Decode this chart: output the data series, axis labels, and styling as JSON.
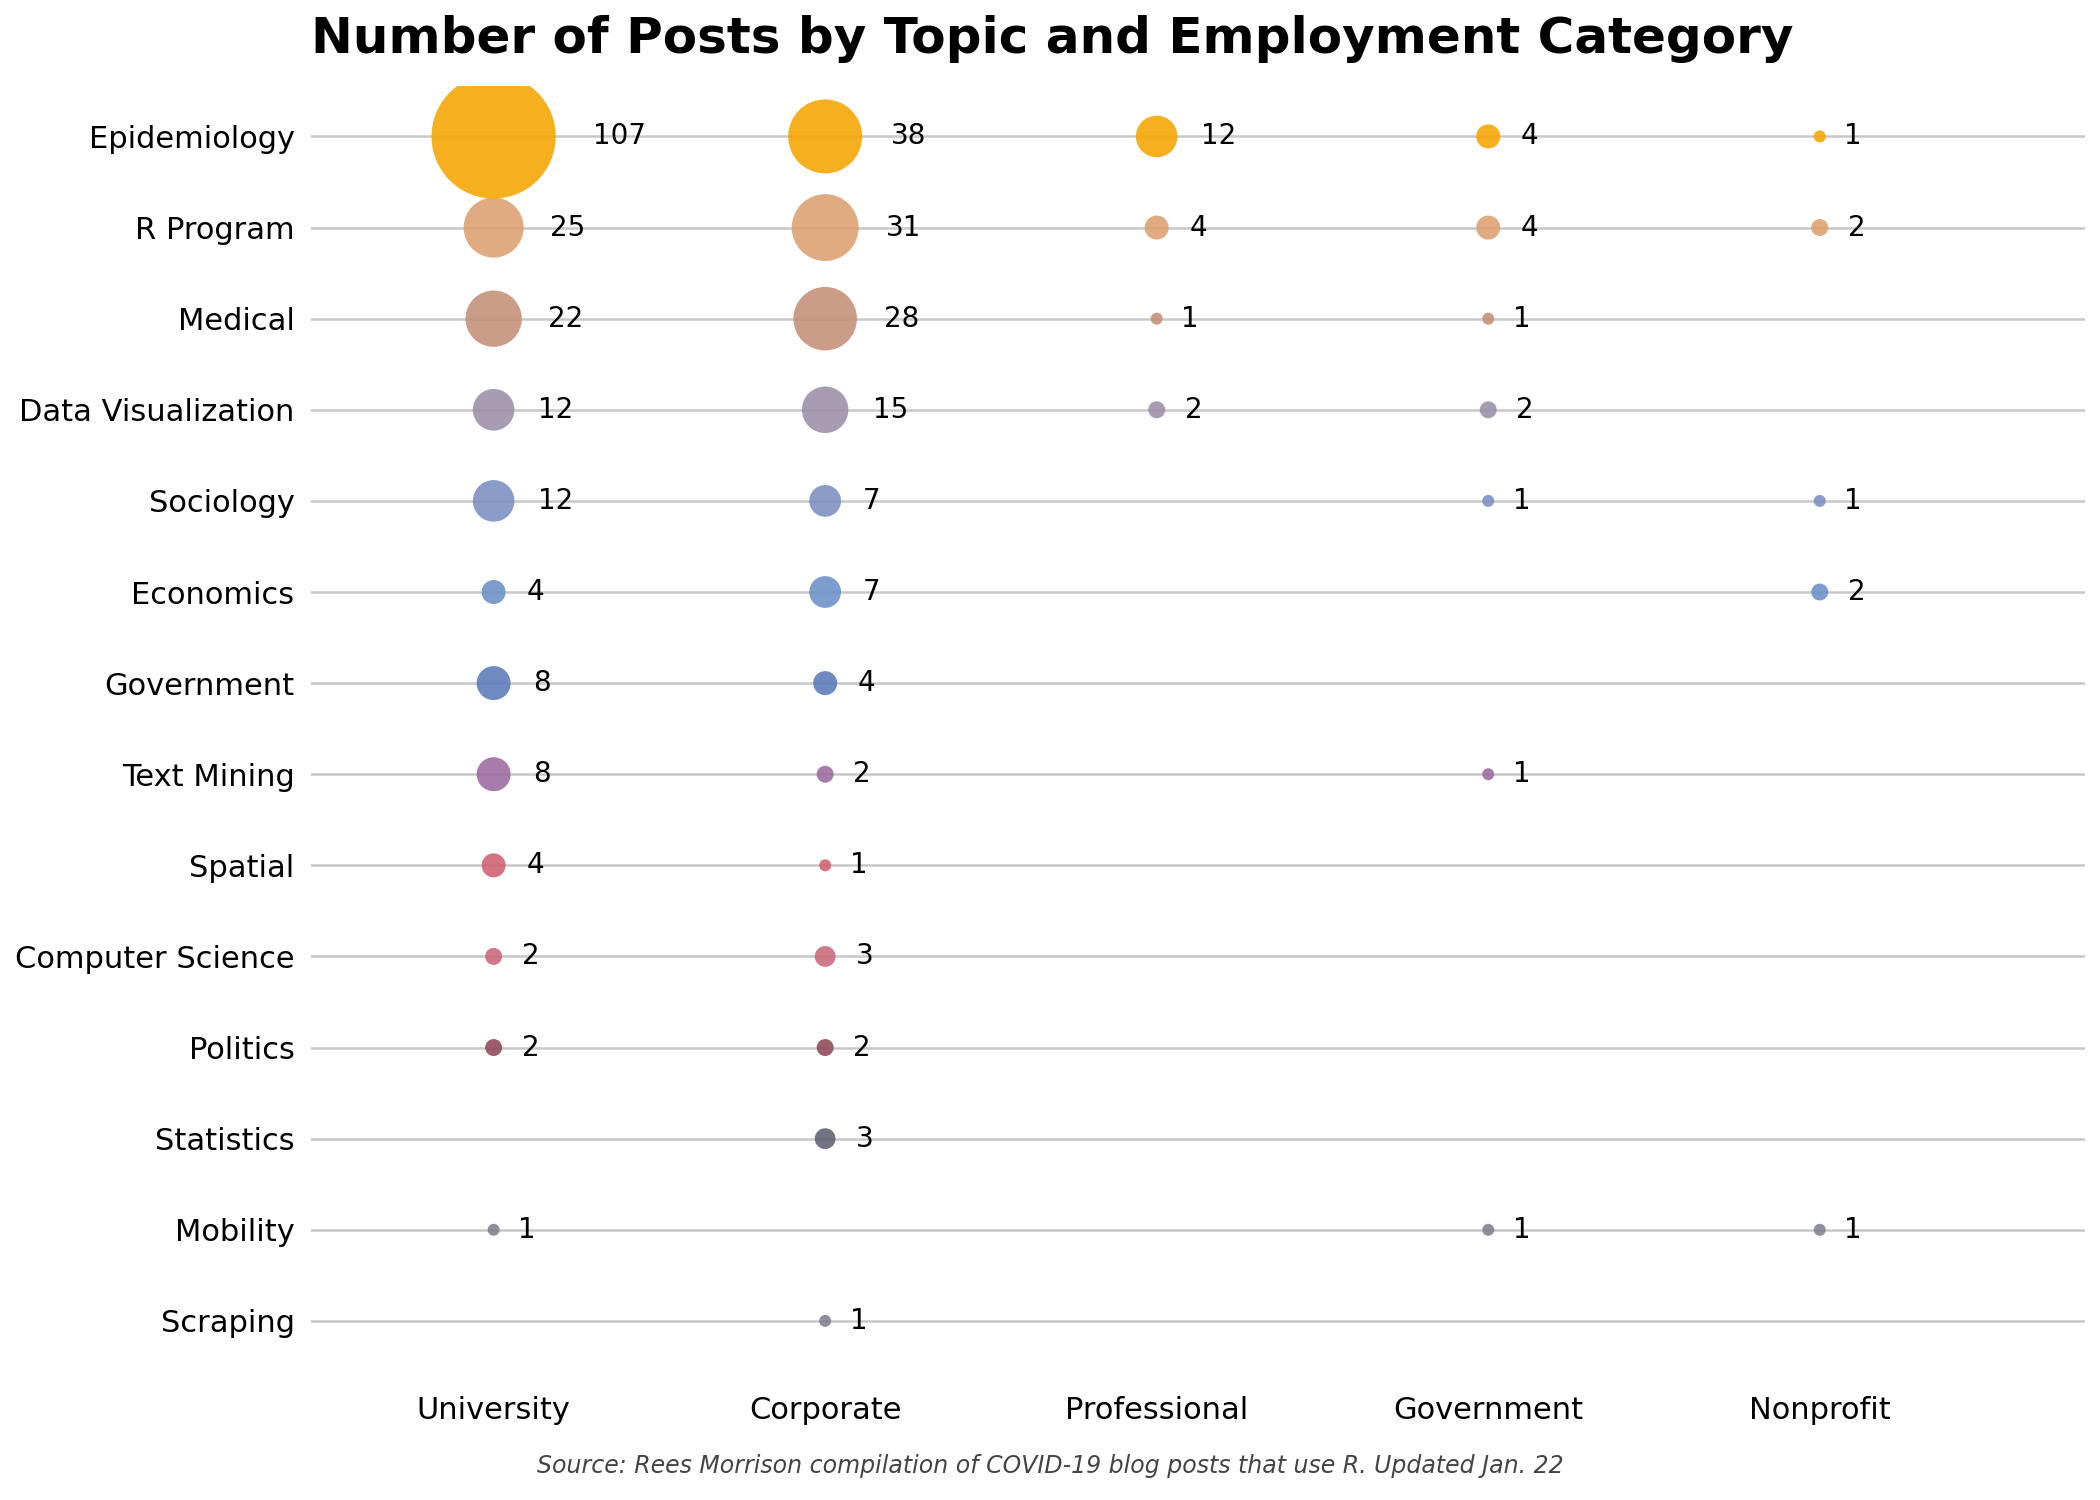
{
  "title": "Number of Posts by Topic and Employment Category",
  "source": "Source: Rees Morrison compilation of COVID-19 blog posts that use R. Updated Jan. 22",
  "topics": [
    "Epidemiology",
    "R Program",
    "Medical",
    "Data Visualization",
    "Sociology",
    "Economics",
    "Government",
    "Text Mining",
    "Spatial",
    "Computer Science",
    "Politics",
    "Statistics",
    "Mobility",
    "Scraping"
  ],
  "categories": [
    "University",
    "Corporate",
    "Professional",
    "Government",
    "Nonprofit"
  ],
  "data": {
    "Epidemiology": [
      107,
      38,
      12,
      4,
      1
    ],
    "R Program": [
      25,
      31,
      4,
      4,
      2
    ],
    "Medical": [
      22,
      28,
      1,
      1,
      0
    ],
    "Data Visualization": [
      12,
      15,
      2,
      2,
      0
    ],
    "Sociology": [
      12,
      7,
      0,
      1,
      1
    ],
    "Economics": [
      4,
      7,
      0,
      0,
      2
    ],
    "Government": [
      8,
      4,
      0,
      0,
      0
    ],
    "Text Mining": [
      8,
      2,
      0,
      1,
      0
    ],
    "Spatial": [
      4,
      1,
      0,
      0,
      0
    ],
    "Computer Science": [
      2,
      3,
      0,
      0,
      0
    ],
    "Politics": [
      2,
      2,
      0,
      0,
      0
    ],
    "Statistics": [
      0,
      3,
      0,
      0,
      0
    ],
    "Mobility": [
      1,
      0,
      0,
      1,
      1
    ],
    "Scraping": [
      0,
      1,
      0,
      0,
      0
    ]
  },
  "colors": {
    "Epidemiology": "#F5A500",
    "R Program": "#DDA070",
    "Medical": "#C49078",
    "Data Visualization": "#9B8EA8",
    "Sociology": "#7A8FC0",
    "Economics": "#6B90C8",
    "Government": "#5A7AB8",
    "Text Mining": "#9B6AA0",
    "Spatial": "#D06070",
    "Computer Science": "#C86878",
    "Politics": "#904858",
    "Statistics": "#606070",
    "Mobility": "#808090",
    "Scraping": "#808090"
  },
  "background_color": "#FFFFFF",
  "max_val": 107,
  "max_bubble_size": 8000,
  "label_fontsize": 20,
  "tick_fontsize": 22,
  "title_fontsize": 36,
  "source_fontsize": 17
}
